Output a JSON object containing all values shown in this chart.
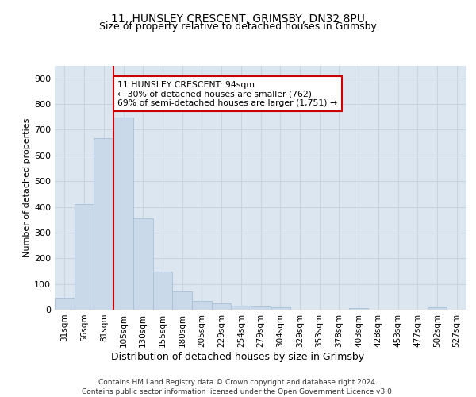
{
  "title_line1": "11, HUNSLEY CRESCENT, GRIMSBY, DN32 8PU",
  "title_line2": "Size of property relative to detached houses in Grimsby",
  "xlabel": "Distribution of detached houses by size in Grimsby",
  "ylabel": "Number of detached properties",
  "footer_line1": "Contains HM Land Registry data © Crown copyright and database right 2024.",
  "footer_line2": "Contains public sector information licensed under the Open Government Licence v3.0.",
  "categories": [
    "31sqm",
    "56sqm",
    "81sqm",
    "105sqm",
    "130sqm",
    "155sqm",
    "180sqm",
    "205sqm",
    "229sqm",
    "254sqm",
    "279sqm",
    "304sqm",
    "329sqm",
    "353sqm",
    "378sqm",
    "403sqm",
    "428sqm",
    "453sqm",
    "477sqm",
    "502sqm",
    "527sqm"
  ],
  "values": [
    45,
    410,
    668,
    748,
    355,
    148,
    70,
    35,
    25,
    15,
    12,
    8,
    0,
    0,
    0,
    5,
    0,
    0,
    0,
    8,
    0
  ],
  "bar_color": "#c9d9ea",
  "bar_edge_color": "#a8bfd4",
  "red_line_x": 2.5,
  "annotation_line1": "11 HUNSLEY CRESCENT: 94sqm",
  "annotation_line2": "← 30% of detached houses are smaller (762)",
  "annotation_line3": "69% of semi-detached houses are larger (1,751) →",
  "annotation_box_color": "#ffffff",
  "annotation_box_edge": "#cc0000",
  "red_line_color": "#cc0000",
  "ylim": [
    0,
    950
  ],
  "yticks": [
    0,
    100,
    200,
    300,
    400,
    500,
    600,
    700,
    800,
    900
  ],
  "grid_color": "#c8d4e0",
  "bg_color": "#dce6f0",
  "title1_fontsize": 10,
  "title2_fontsize": 9,
  "ylabel_fontsize": 8,
  "xlabel_fontsize": 9,
  "footer_fontsize": 6.5,
  "tick_fontsize": 7.5,
  "ytick_fontsize": 8
}
